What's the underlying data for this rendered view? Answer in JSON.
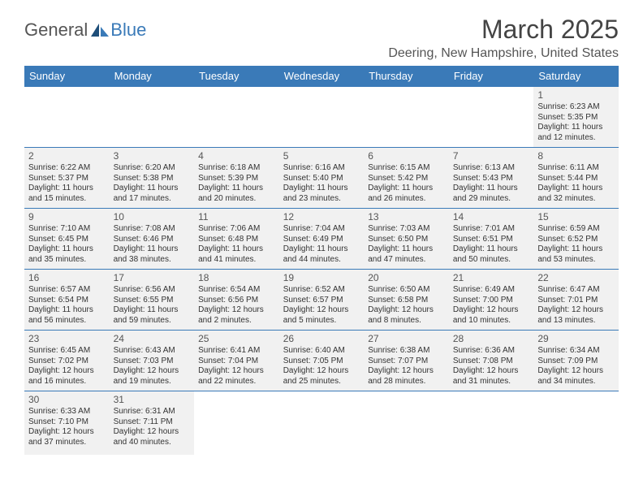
{
  "logo": {
    "part1": "General",
    "part2": "Blue"
  },
  "title": "March 2025",
  "location": "Deering, New Hampshire, United States",
  "colors": {
    "header_bg": "#3a7ab8",
    "cell_bg": "#f1f1f1",
    "border": "#3a7ab8",
    "text": "#333"
  },
  "dayNames": [
    "Sunday",
    "Monday",
    "Tuesday",
    "Wednesday",
    "Thursday",
    "Friday",
    "Saturday"
  ],
  "weeks": [
    [
      null,
      null,
      null,
      null,
      null,
      null,
      {
        "n": "1",
        "sr": "Sunrise: 6:23 AM",
        "ss": "Sunset: 5:35 PM",
        "dl": "Daylight: 11 hours and 12 minutes."
      }
    ],
    [
      {
        "n": "2",
        "sr": "Sunrise: 6:22 AM",
        "ss": "Sunset: 5:37 PM",
        "dl": "Daylight: 11 hours and 15 minutes."
      },
      {
        "n": "3",
        "sr": "Sunrise: 6:20 AM",
        "ss": "Sunset: 5:38 PM",
        "dl": "Daylight: 11 hours and 17 minutes."
      },
      {
        "n": "4",
        "sr": "Sunrise: 6:18 AM",
        "ss": "Sunset: 5:39 PM",
        "dl": "Daylight: 11 hours and 20 minutes."
      },
      {
        "n": "5",
        "sr": "Sunrise: 6:16 AM",
        "ss": "Sunset: 5:40 PM",
        "dl": "Daylight: 11 hours and 23 minutes."
      },
      {
        "n": "6",
        "sr": "Sunrise: 6:15 AM",
        "ss": "Sunset: 5:42 PM",
        "dl": "Daylight: 11 hours and 26 minutes."
      },
      {
        "n": "7",
        "sr": "Sunrise: 6:13 AM",
        "ss": "Sunset: 5:43 PM",
        "dl": "Daylight: 11 hours and 29 minutes."
      },
      {
        "n": "8",
        "sr": "Sunrise: 6:11 AM",
        "ss": "Sunset: 5:44 PM",
        "dl": "Daylight: 11 hours and 32 minutes."
      }
    ],
    [
      {
        "n": "9",
        "sr": "Sunrise: 7:10 AM",
        "ss": "Sunset: 6:45 PM",
        "dl": "Daylight: 11 hours and 35 minutes."
      },
      {
        "n": "10",
        "sr": "Sunrise: 7:08 AM",
        "ss": "Sunset: 6:46 PM",
        "dl": "Daylight: 11 hours and 38 minutes."
      },
      {
        "n": "11",
        "sr": "Sunrise: 7:06 AM",
        "ss": "Sunset: 6:48 PM",
        "dl": "Daylight: 11 hours and 41 minutes."
      },
      {
        "n": "12",
        "sr": "Sunrise: 7:04 AM",
        "ss": "Sunset: 6:49 PM",
        "dl": "Daylight: 11 hours and 44 minutes."
      },
      {
        "n": "13",
        "sr": "Sunrise: 7:03 AM",
        "ss": "Sunset: 6:50 PM",
        "dl": "Daylight: 11 hours and 47 minutes."
      },
      {
        "n": "14",
        "sr": "Sunrise: 7:01 AM",
        "ss": "Sunset: 6:51 PM",
        "dl": "Daylight: 11 hours and 50 minutes."
      },
      {
        "n": "15",
        "sr": "Sunrise: 6:59 AM",
        "ss": "Sunset: 6:52 PM",
        "dl": "Daylight: 11 hours and 53 minutes."
      }
    ],
    [
      {
        "n": "16",
        "sr": "Sunrise: 6:57 AM",
        "ss": "Sunset: 6:54 PM",
        "dl": "Daylight: 11 hours and 56 minutes."
      },
      {
        "n": "17",
        "sr": "Sunrise: 6:56 AM",
        "ss": "Sunset: 6:55 PM",
        "dl": "Daylight: 11 hours and 59 minutes."
      },
      {
        "n": "18",
        "sr": "Sunrise: 6:54 AM",
        "ss": "Sunset: 6:56 PM",
        "dl": "Daylight: 12 hours and 2 minutes."
      },
      {
        "n": "19",
        "sr": "Sunrise: 6:52 AM",
        "ss": "Sunset: 6:57 PM",
        "dl": "Daylight: 12 hours and 5 minutes."
      },
      {
        "n": "20",
        "sr": "Sunrise: 6:50 AM",
        "ss": "Sunset: 6:58 PM",
        "dl": "Daylight: 12 hours and 8 minutes."
      },
      {
        "n": "21",
        "sr": "Sunrise: 6:49 AM",
        "ss": "Sunset: 7:00 PM",
        "dl": "Daylight: 12 hours and 10 minutes."
      },
      {
        "n": "22",
        "sr": "Sunrise: 6:47 AM",
        "ss": "Sunset: 7:01 PM",
        "dl": "Daylight: 12 hours and 13 minutes."
      }
    ],
    [
      {
        "n": "23",
        "sr": "Sunrise: 6:45 AM",
        "ss": "Sunset: 7:02 PM",
        "dl": "Daylight: 12 hours and 16 minutes."
      },
      {
        "n": "24",
        "sr": "Sunrise: 6:43 AM",
        "ss": "Sunset: 7:03 PM",
        "dl": "Daylight: 12 hours and 19 minutes."
      },
      {
        "n": "25",
        "sr": "Sunrise: 6:41 AM",
        "ss": "Sunset: 7:04 PM",
        "dl": "Daylight: 12 hours and 22 minutes."
      },
      {
        "n": "26",
        "sr": "Sunrise: 6:40 AM",
        "ss": "Sunset: 7:05 PM",
        "dl": "Daylight: 12 hours and 25 minutes."
      },
      {
        "n": "27",
        "sr": "Sunrise: 6:38 AM",
        "ss": "Sunset: 7:07 PM",
        "dl": "Daylight: 12 hours and 28 minutes."
      },
      {
        "n": "28",
        "sr": "Sunrise: 6:36 AM",
        "ss": "Sunset: 7:08 PM",
        "dl": "Daylight: 12 hours and 31 minutes."
      },
      {
        "n": "29",
        "sr": "Sunrise: 6:34 AM",
        "ss": "Sunset: 7:09 PM",
        "dl": "Daylight: 12 hours and 34 minutes."
      }
    ],
    [
      {
        "n": "30",
        "sr": "Sunrise: 6:33 AM",
        "ss": "Sunset: 7:10 PM",
        "dl": "Daylight: 12 hours and 37 minutes."
      },
      {
        "n": "31",
        "sr": "Sunrise: 6:31 AM",
        "ss": "Sunset: 7:11 PM",
        "dl": "Daylight: 12 hours and 40 minutes."
      },
      null,
      null,
      null,
      null,
      null
    ]
  ]
}
